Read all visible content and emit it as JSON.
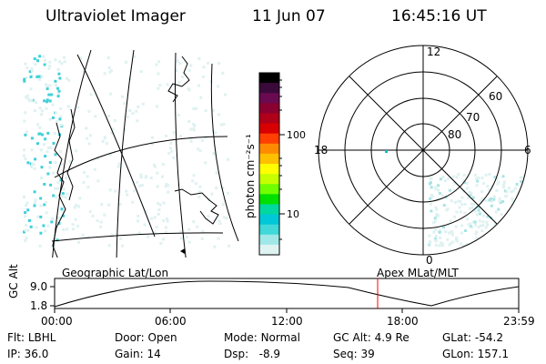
{
  "header": {
    "instrument": "Ultraviolet Imager",
    "date": "11 Jun 07",
    "time": "16:45:16 UT"
  },
  "colorbar": {
    "unit_label": "photon cm⁻²s⁻¹",
    "scale": "log",
    "ticks": [
      "100",
      "10"
    ],
    "colors": [
      "#000000",
      "#3a0a3a",
      "#6a0a50",
      "#8a0030",
      "#b0001a",
      "#d80000",
      "#ff4000",
      "#ff8c00",
      "#ffc000",
      "#ffff00",
      "#c8ff00",
      "#70ff00",
      "#00e000",
      "#00d8a0",
      "#00c8d8",
      "#40d8d8",
      "#a0e8e8",
      "#dff3f3"
    ]
  },
  "polar_plot": {
    "mlt_labels": [
      "12",
      "18",
      "6",
      "0"
    ],
    "mlat_labels": [
      "60",
      "70",
      "80"
    ]
  },
  "timeline": {
    "y_axis_label": "GC Alt",
    "y_ticks": [
      "9.0",
      "1.8"
    ],
    "left_title": "Geographic Lat/Lon",
    "right_title": "Apex MLat/MLT",
    "x_ticks": [
      "00:00",
      "06:00",
      "12:00",
      "18:00",
      "23:59"
    ],
    "marker_time": "16:45",
    "marker_color": "#ff0000"
  },
  "status": {
    "row1": [
      {
        "label": "Flt:",
        "value": "LBHL"
      },
      {
        "label": "Door:",
        "value": "Open"
      },
      {
        "label": "Mode:",
        "value": "Normal"
      },
      {
        "label": "GC Alt:",
        "value": "4.9 Re"
      },
      {
        "label": "GLat:",
        "value": "-54.2"
      }
    ],
    "row2": [
      {
        "label": "IP:",
        "value": "36.0"
      },
      {
        "label": "Gain:",
        "value": "14"
      },
      {
        "label": "Dsp:",
        "value": "-8.9"
      },
      {
        "label": "Seq:",
        "value": "39"
      },
      {
        "label": "GLon:",
        "value": "157.1"
      }
    ]
  }
}
